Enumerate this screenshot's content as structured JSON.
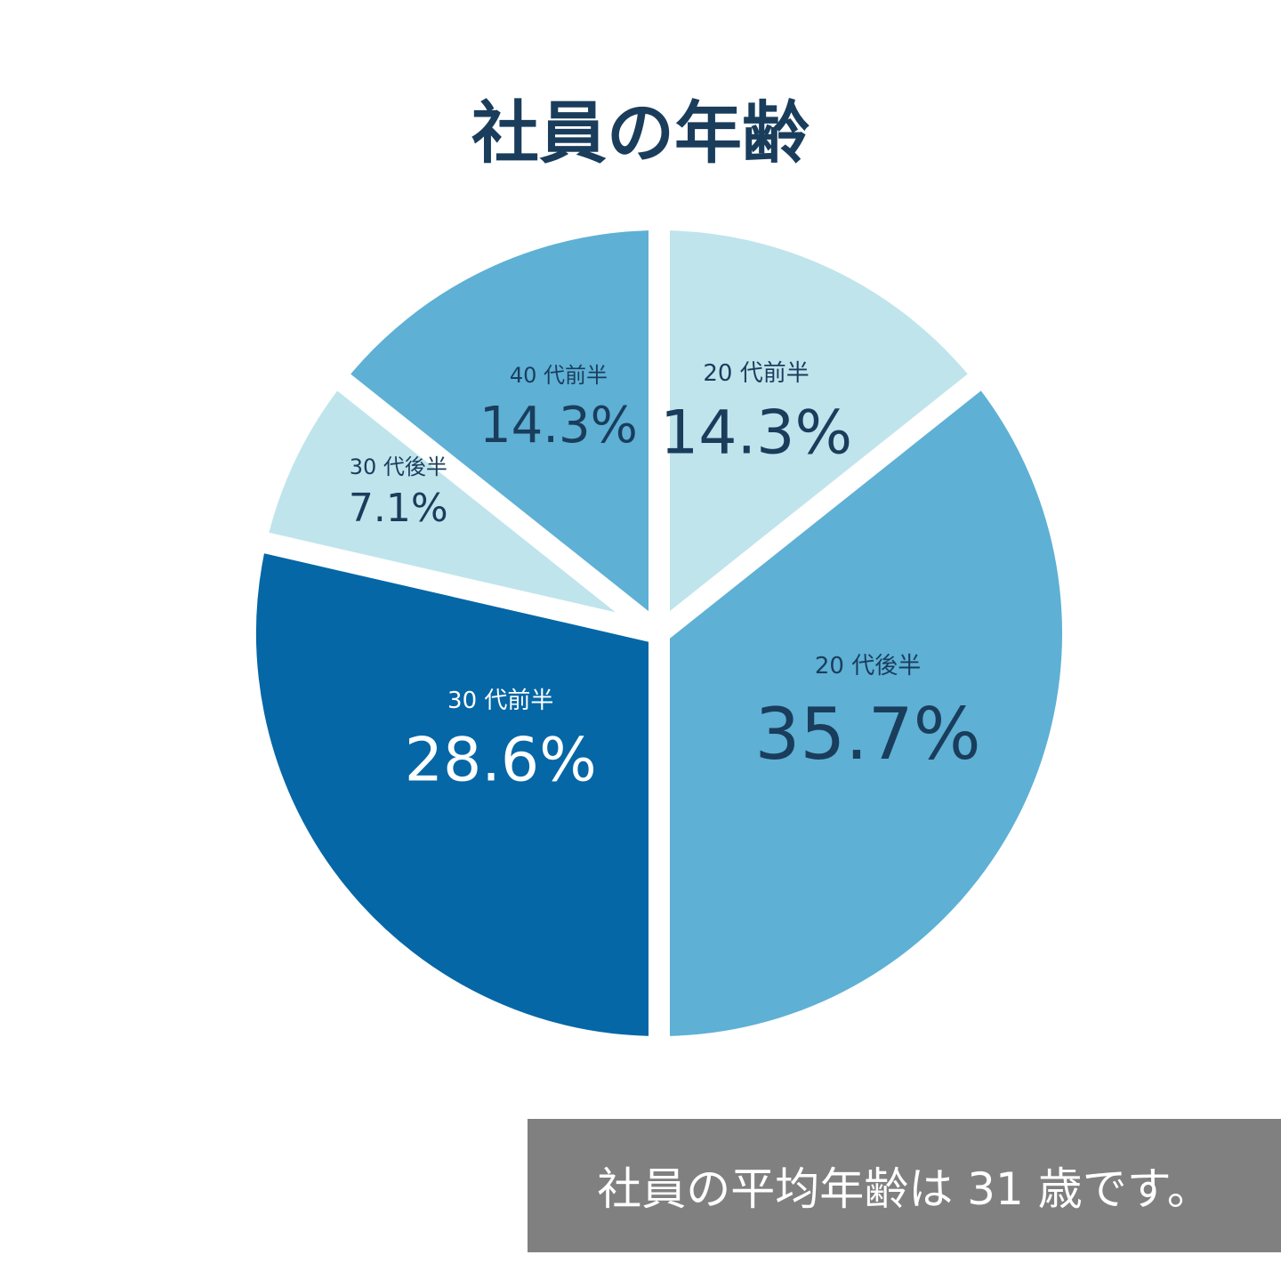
{
  "chart_data": {
    "type": "pie",
    "title": "社員の年齢",
    "slices": [
      {
        "label": "20 代前半",
        "value_text": "14.3%",
        "value": 14.3,
        "color": "#bfe4ec",
        "text_color": "#1a3d5c"
      },
      {
        "label": "20 代後半",
        "value_text": "35.7%",
        "value": 35.7,
        "color": "#5eb0d5",
        "text_color": "#1a3d5c"
      },
      {
        "label": "30 代前半",
        "value_text": "28.6%",
        "value": 28.6,
        "color": "#0567a6",
        "text_color": "#ffffff"
      },
      {
        "label": "30 代後半",
        "value_text": "7.1%",
        "value": 7.1,
        "color": "#bfe4ec",
        "text_color": "#1a3d5c"
      },
      {
        "label": "40 代前半",
        "value_text": "14.3%",
        "value": 14.3,
        "color": "#5eb0d5",
        "text_color": "#1a3d5c"
      }
    ],
    "start": "12 o'clock",
    "direction": "clockwise"
  },
  "summary": {
    "text": "社員の平均年齢は 31 歳です。"
  }
}
